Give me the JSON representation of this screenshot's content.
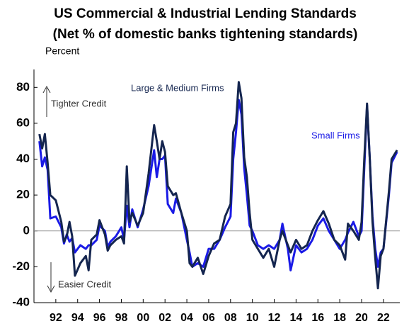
{
  "chart_data": {
    "type": "line",
    "title": "US Commercial & Industrial Lending Standards",
    "subtitle": "(Net % of domestic banks tightening standards)",
    "y_label": "Percent",
    "annotations": [
      "Tighter Credit",
      "Easier Credit"
    ],
    "x": [
      1990.5,
      1990.75,
      1991.0,
      1991.25,
      1991.5,
      1992.0,
      1992.5,
      1992.75,
      1993.0,
      1993.25,
      1993.5,
      1993.75,
      1994.25,
      1994.75,
      1995.0,
      1995.25,
      1995.75,
      1996.0,
      1996.5,
      1996.75,
      1997.0,
      1997.5,
      1998.0,
      1998.25,
      1998.5,
      1998.75,
      1999.0,
      1999.5,
      2000.0,
      2000.5,
      2001.0,
      2001.25,
      2001.5,
      2001.75,
      2002.0,
      2002.25,
      2002.75,
      2003.0,
      2003.5,
      2004.0,
      2004.25,
      2004.5,
      2005.0,
      2005.5,
      2006.0,
      2006.5,
      2007.0,
      2007.5,
      2008.0,
      2008.25,
      2008.5,
      2008.75,
      2009.0,
      2009.25,
      2009.5,
      2009.75,
      2010.0,
      2010.5,
      2011.0,
      2011.5,
      2012.0,
      2012.5,
      2012.75,
      2013.25,
      2013.5,
      2014.0,
      2014.5,
      2015.0,
      2015.5,
      2016.0,
      2016.5,
      2017.0,
      2017.5,
      2018.0,
      2018.5,
      2018.75,
      2019.25,
      2019.75,
      2020.0,
      2020.25,
      2020.5,
      2020.75,
      2021.0,
      2021.25,
      2021.5,
      2021.75,
      2022.0,
      2022.5,
      2022.75,
      2023.25
    ],
    "series": [
      {
        "name": "Large & Medium Firms",
        "color": "#14254f",
        "values": [
          54,
          46,
          54,
          38,
          20,
          17,
          5,
          -6,
          -3,
          5,
          -3,
          -25,
          -18,
          -14,
          -22,
          -5,
          -2,
          6,
          -2,
          -11,
          -8,
          -5,
          -3,
          -7,
          36,
          5,
          10,
          3,
          10,
          32,
          59,
          50,
          40,
          50,
          44,
          25,
          20,
          21,
          10,
          0,
          -18,
          -20,
          -15,
          -24,
          -14,
          -7,
          -5,
          8,
          15,
          55,
          60,
          83,
          74,
          41,
          30,
          10,
          -5,
          -10,
          -15,
          -10,
          -20,
          -5,
          0,
          -8,
          -12,
          -5,
          -10,
          -8,
          0,
          6,
          11,
          4,
          -5,
          -8,
          -16,
          4,
          0,
          -5,
          5,
          40,
          71,
          40,
          5,
          -15,
          -32,
          -14,
          -10,
          22,
          40,
          45
        ]
      },
      {
        "name": "Small Firms",
        "color": "#1a1ae6",
        "values": [
          50,
          36,
          41,
          34,
          7,
          8,
          2,
          -7,
          -2,
          -6,
          -4,
          -12,
          -8,
          -10,
          -8,
          -8,
          -5,
          3,
          0,
          -9,
          -6,
          -3,
          2,
          -5,
          14,
          2,
          12,
          2,
          12,
          25,
          45,
          30,
          40,
          40,
          42,
          15,
          10,
          18,
          10,
          -5,
          -12,
          -20,
          -18,
          -20,
          -10,
          -10,
          -5,
          2,
          8,
          40,
          55,
          73,
          65,
          35,
          20,
          3,
          0,
          -8,
          -10,
          -8,
          -10,
          -5,
          4,
          -10,
          -22,
          -8,
          -12,
          -10,
          -5,
          3,
          7,
          0,
          -5,
          -10,
          -5,
          -1,
          5,
          -3,
          0,
          35,
          70,
          40,
          8,
          -10,
          -20,
          -12,
          -10,
          20,
          38,
          44
        ]
      }
    ],
    "xlim": [
      1990,
      2023.5
    ],
    "xticks": [
      {
        "value": 1992,
        "label": "92"
      },
      {
        "value": 1994,
        "label": "94"
      },
      {
        "value": 1996,
        "label": "96"
      },
      {
        "value": 1998,
        "label": "98"
      },
      {
        "value": 2000,
        "label": "00"
      },
      {
        "value": 2002,
        "label": "02"
      },
      {
        "value": 2004,
        "label": "04"
      },
      {
        "value": 2006,
        "label": "06"
      },
      {
        "value": 2008,
        "label": "08"
      },
      {
        "value": 2010,
        "label": "10"
      },
      {
        "value": 2012,
        "label": "12"
      },
      {
        "value": 2014,
        "label": "14"
      },
      {
        "value": 2016,
        "label": "16"
      },
      {
        "value": 2018,
        "label": "18"
      },
      {
        "value": 2020,
        "label": "20"
      },
      {
        "value": 2022,
        "label": "22"
      }
    ],
    "ylim": [
      -40,
      90
    ],
    "yticks": [
      -40,
      -20,
      0,
      20,
      40,
      60,
      80
    ],
    "grid": false
  }
}
